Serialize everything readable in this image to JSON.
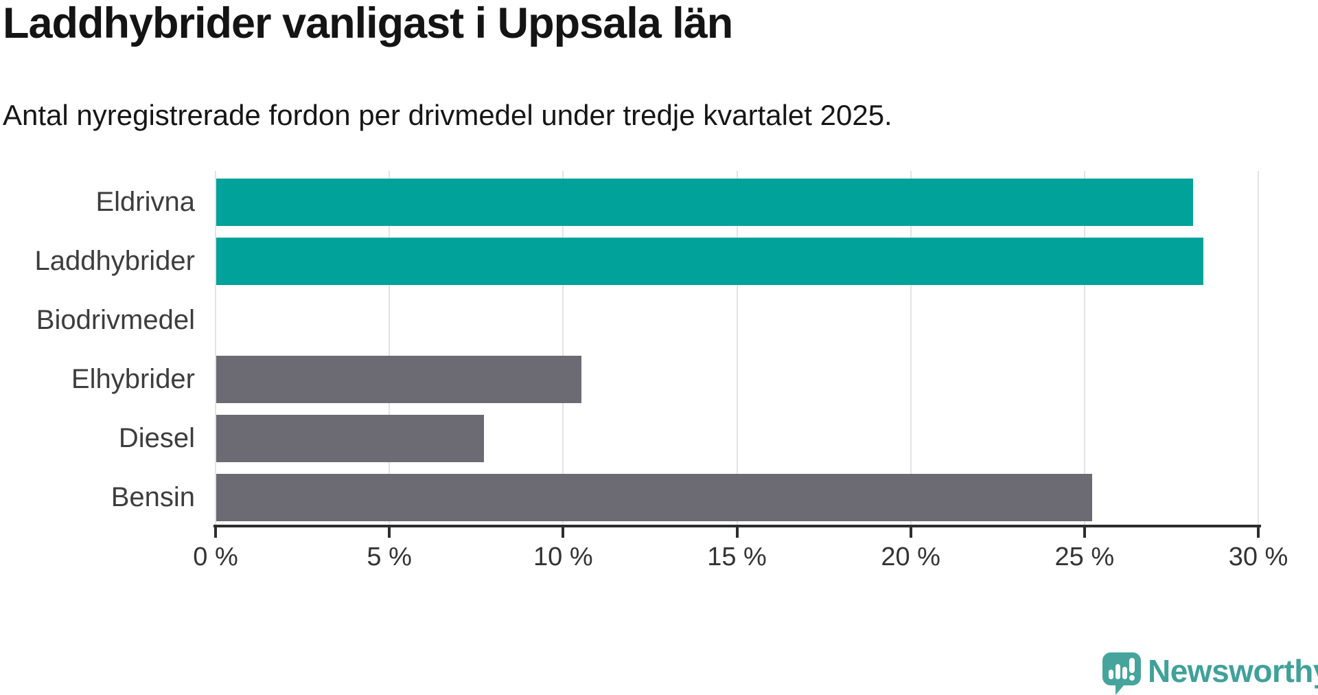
{
  "header": {
    "title": "Laddhybrider vanligast i Uppsala län",
    "subtitle": "Antal nyregistrerade fordon per drivmedel under tredje kvartalet 2025."
  },
  "chart_data": {
    "type": "bar",
    "orientation": "horizontal",
    "title": "Laddhybrider vanligast i Uppsala län",
    "subtitle": "Antal nyregistrerade fordon per drivmedel under tredje kvartalet 2025.",
    "categories": [
      "Eldrivna",
      "Laddhybrider",
      "Biodrivmedel",
      "Elhybrider",
      "Diesel",
      "Bensin"
    ],
    "values": [
      28.1,
      28.4,
      0,
      10.5,
      7.7,
      25.2
    ],
    "unit": "%",
    "bar_colors": [
      "#00a29a",
      "#00a29a",
      "#6c6b73",
      "#6c6b73",
      "#6c6b73",
      "#6c6b73"
    ],
    "highlight_color": "#00a29a",
    "default_color": "#6c6b73",
    "xlabel": "",
    "ylabel": "",
    "xlim": [
      0,
      30
    ],
    "x_ticks": [
      0,
      5,
      10,
      15,
      20,
      25,
      30
    ],
    "x_tick_labels": [
      "0 %",
      "5 %",
      "10 %",
      "15 %",
      "20 %",
      "25 %",
      "30 %"
    ],
    "grid": "vertical-gridlines-on",
    "legend": "none"
  },
  "footer": {
    "brand": "Newsworthy",
    "brand_color": "#3fa19a",
    "logo_icon": "speech-bubble-bar-chart-icon"
  },
  "colors": {
    "background": "#ffffff",
    "axis": "#2d2d2d",
    "gridline": "#e3e3e3",
    "tick_label": "#333333",
    "category_label": "#3d3d3d",
    "title_text": "#141414"
  }
}
